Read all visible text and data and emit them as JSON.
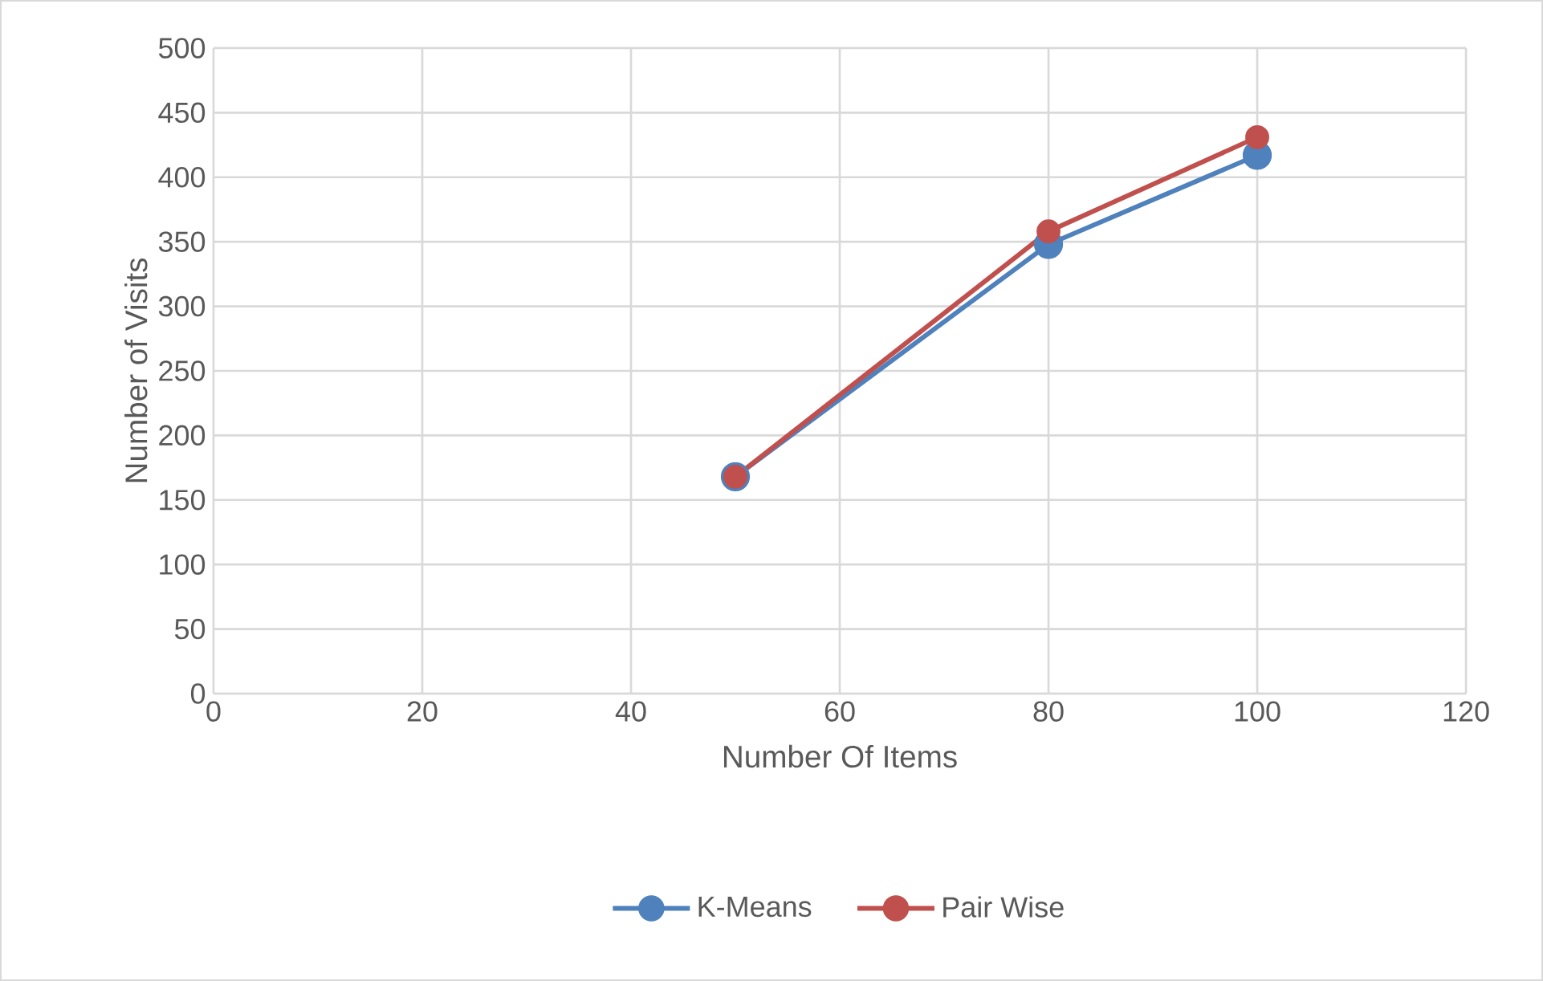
{
  "chart_data": {
    "type": "line",
    "xlabel": "Number Of Items",
    "ylabel": "Number of  Visits",
    "x": [
      50,
      80,
      100
    ],
    "series": [
      {
        "name": "K-Means",
        "color": "#4f81bd",
        "values": [
          168,
          348,
          417
        ]
      },
      {
        "name": "Pair Wise",
        "color": "#c0504d",
        "values": [
          168,
          358,
          431
        ]
      }
    ],
    "xlim": [
      0,
      120
    ],
    "xticks": [
      0,
      20,
      40,
      60,
      80,
      100,
      120
    ],
    "ylim": [
      0,
      500
    ],
    "yticks": [
      0,
      50,
      100,
      150,
      200,
      250,
      300,
      350,
      400,
      450,
      500
    ],
    "grid": true,
    "legend": "bottom",
    "marker": "circle",
    "line_style": "solid"
  }
}
